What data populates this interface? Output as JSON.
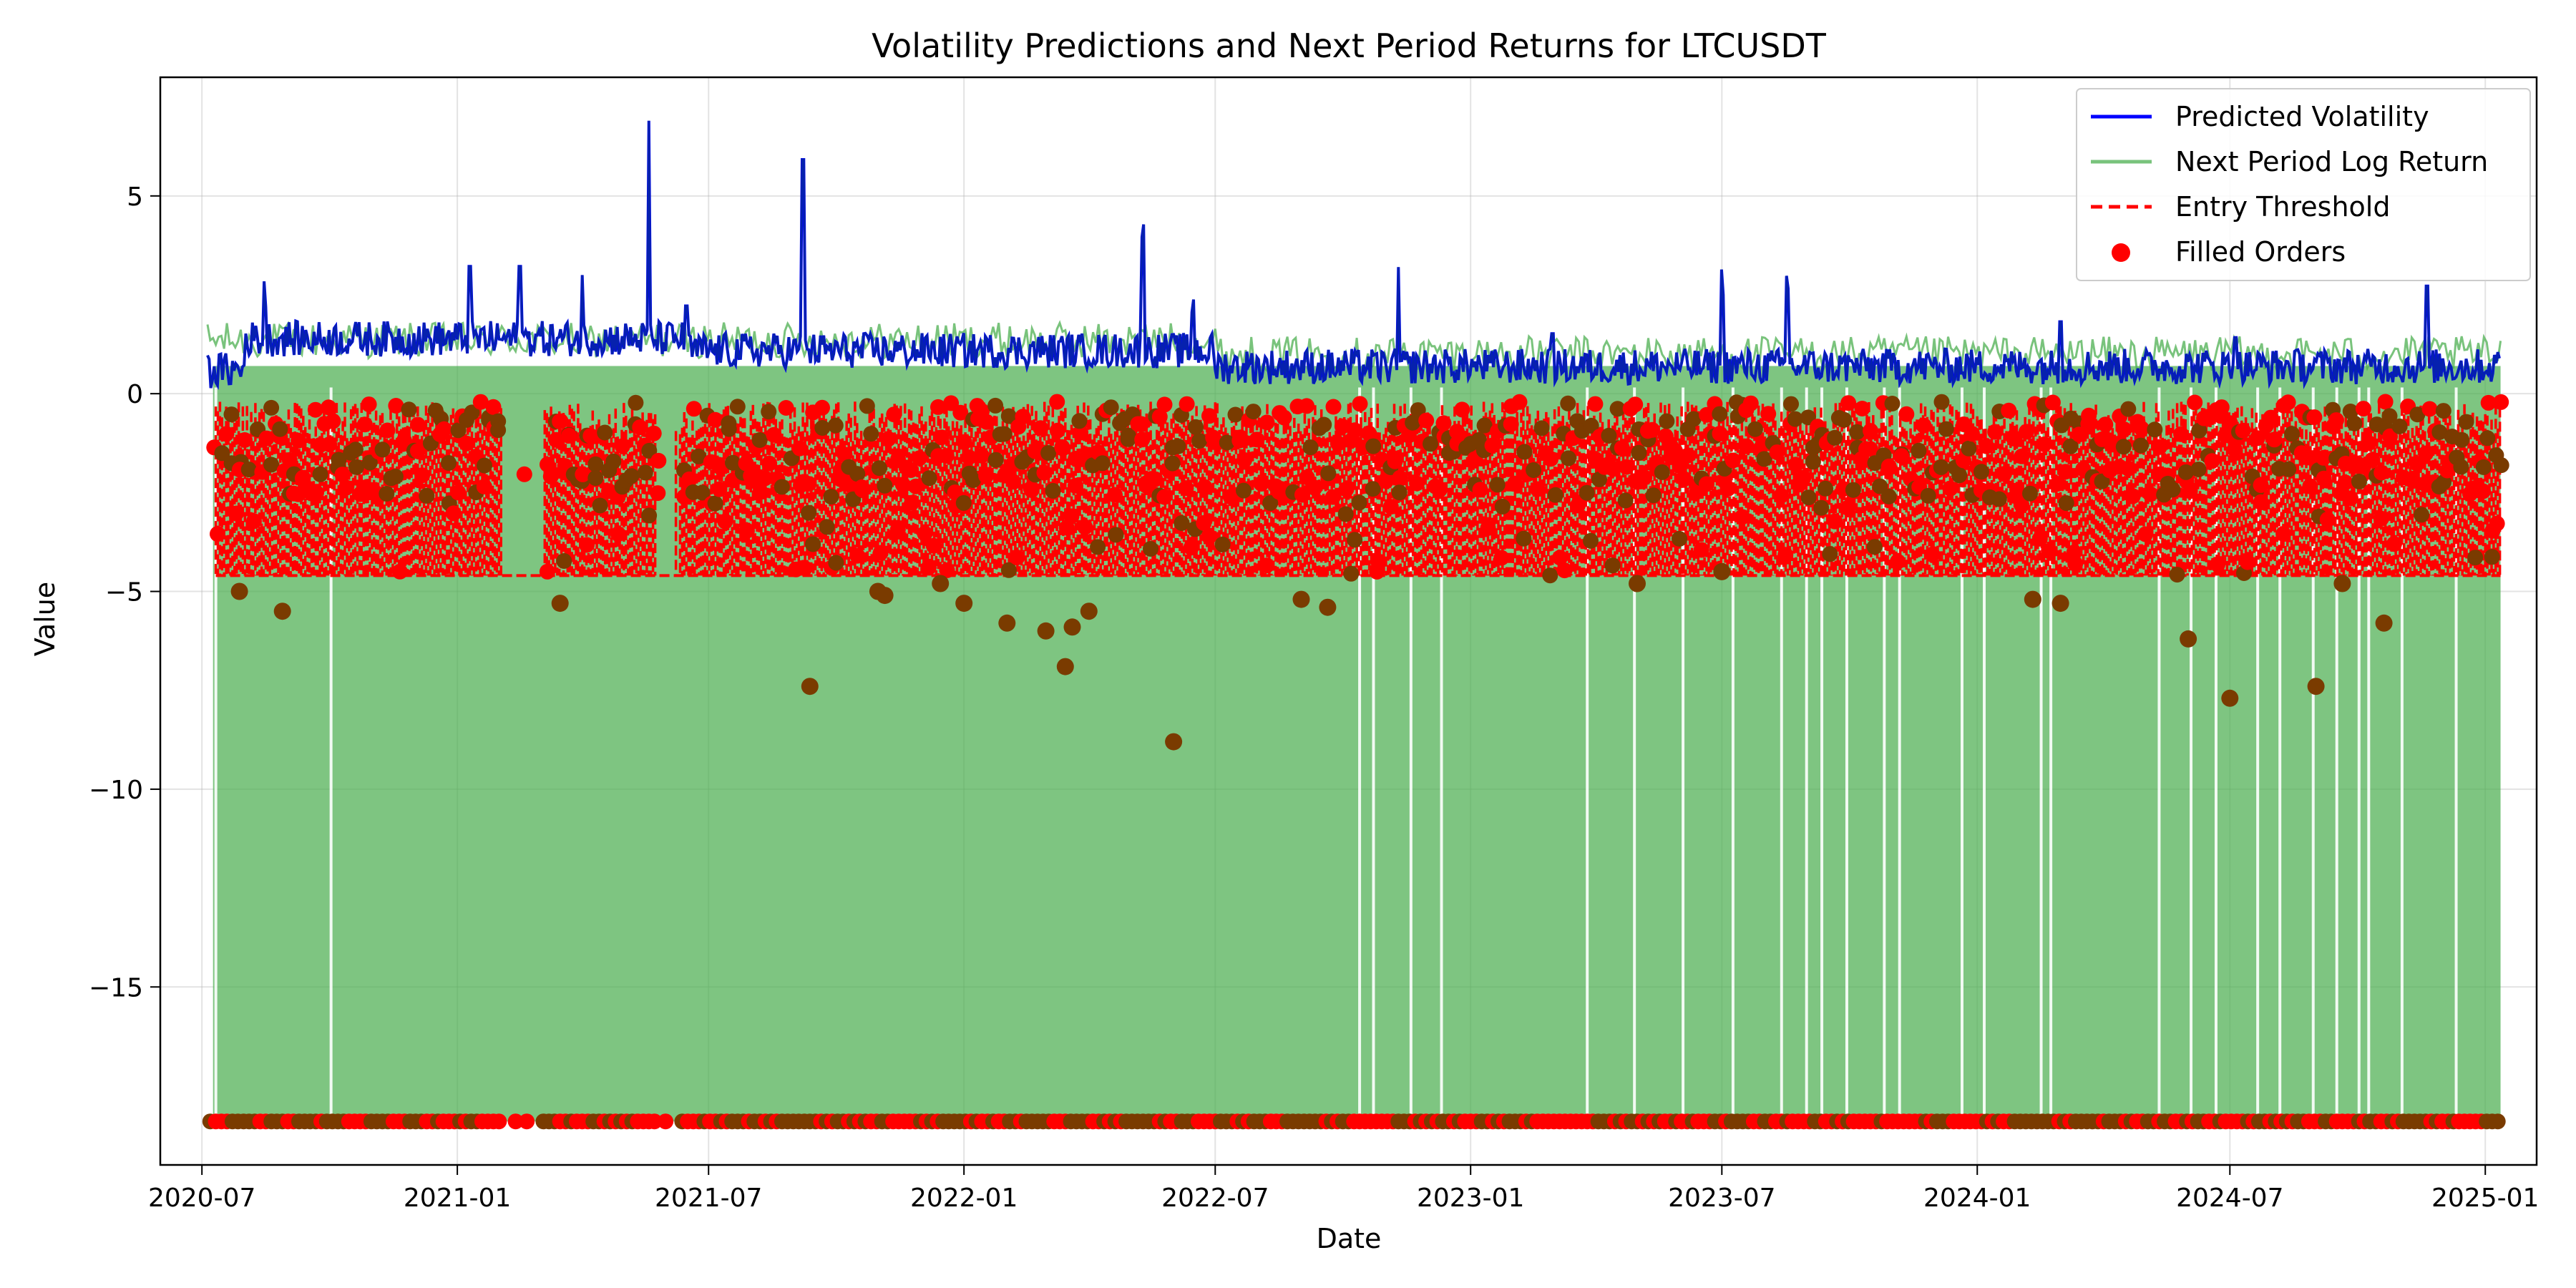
{
  "chart_data": {
    "type": "line",
    "title": "Volatility Predictions and Next Period Returns for LTCUSDT",
    "xlabel": "Date",
    "ylabel": "Value",
    "x_range": [
      "2020-06-01",
      "2025-02-07"
    ],
    "ylim": [
      -19.5,
      8.0
    ],
    "grid": true,
    "legend_position": "top-right",
    "x_ticks": [
      "2020-07",
      "2021-01",
      "2021-07",
      "2022-01",
      "2022-07",
      "2023-01",
      "2023-07",
      "2024-01",
      "2024-07",
      "2025-01"
    ],
    "y_ticks": [
      5,
      0,
      -5,
      -10,
      -15
    ],
    "y_tick_labels": [
      "5",
      "0",
      "−5",
      "−10",
      "−15"
    ],
    "colors": {
      "predicted_volatility": "#0000ff",
      "next_period_log_return": "#4caf50",
      "entry_threshold": "#ff0000",
      "filled_orders": "#ff0000",
      "overlap_dark": "#7a3b00"
    },
    "series": [
      {
        "name": "Predicted Volatility",
        "style": "line",
        "x": [
          "2020-07-05",
          "2020-08-01",
          "2020-08-15",
          "2020-10-01",
          "2020-12-01",
          "2021-01-10",
          "2021-02-15",
          "2021-04-01",
          "2021-05-19",
          "2021-06-15",
          "2021-09-07",
          "2021-11-01",
          "2022-01-01",
          "2022-05-10",
          "2022-06-15",
          "2022-09-01",
          "2022-11-10",
          "2023-01-01",
          "2023-03-01",
          "2023-07-01",
          "2023-08-17",
          "2023-10-01",
          "2024-01-01",
          "2024-03-01",
          "2024-05-01",
          "2024-07-05",
          "2024-09-01",
          "2024-11-20",
          "2025-01-10"
        ],
        "y": [
          0.3,
          1.2,
          3.0,
          1.3,
          1.5,
          3.7,
          3.7,
          3.0,
          6.9,
          2.7,
          6.4,
          1.0,
          1.0,
          4.6,
          2.7,
          0.8,
          3.2,
          0.8,
          2.0,
          3.3,
          3.3,
          0.8,
          0.6,
          2.3,
          1.2,
          1.9,
          0.8,
          3.2,
          0.5
        ]
      },
      {
        "name": "Next Period Log Return",
        "style": "line",
        "range_low": -18.4,
        "range_high": 1.6
      },
      {
        "name": "Entry Threshold",
        "style": "dashed",
        "range_low": -4.6,
        "range_high": -0.2
      },
      {
        "name": "Filled Orders",
        "style": "scatter",
        "x": [
          "2020-07-28",
          "2020-08-28",
          "2021-03-16",
          "2021-09-12",
          "2021-10-31",
          "2021-11-05",
          "2021-12-15",
          "2022-01-01",
          "2022-02-01",
          "2022-03-01",
          "2022-03-15",
          "2022-03-20",
          "2022-04-01",
          "2022-06-01",
          "2022-09-01",
          "2022-09-20",
          "2023-05-01",
          "2023-07-01",
          "2024-02-10",
          "2024-03-01",
          "2024-06-01",
          "2024-07-01",
          "2024-09-01",
          "2024-09-20",
          "2024-10-20"
        ],
        "y": [
          -5.0,
          -5.5,
          -5.3,
          -7.4,
          -5.0,
          -5.1,
          -4.8,
          -5.3,
          -5.8,
          -6.0,
          -6.9,
          -5.9,
          -5.5,
          -8.8,
          -5.2,
          -5.4,
          -4.8,
          -4.5,
          -5.2,
          -5.3,
          -6.2,
          -7.7,
          -7.4,
          -4.8,
          -5.8
        ],
        "floor_value": -18.4,
        "band_low": -4.6,
        "band_high": -0.2
      }
    ]
  }
}
